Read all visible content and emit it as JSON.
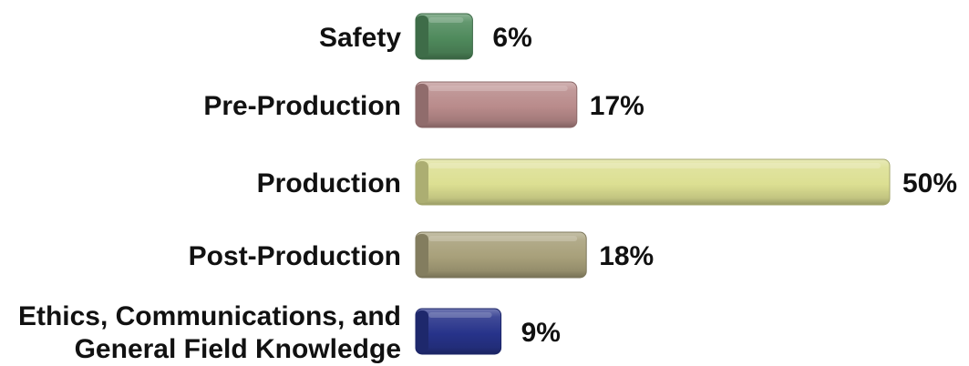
{
  "chart_data": {
    "type": "bar",
    "orientation": "horizontal",
    "categories": [
      [
        "Safety"
      ],
      [
        "Pre-Production"
      ],
      [
        "Production"
      ],
      [
        "Post-Production"
      ],
      [
        "Ethics, Communications, and",
        "General Field Knowledge"
      ]
    ],
    "values": [
      6,
      17,
      50,
      18,
      9
    ],
    "value_labels": [
      "6%",
      "17%",
      "50%",
      "18%",
      "9%"
    ],
    "colors": [
      "#4f8a5c",
      "#b98b8b",
      "#dcdf92",
      "#a8a07a",
      "#27338a"
    ],
    "unit": "%",
    "title": "",
    "xlabel": "",
    "ylabel": "",
    "xlim": [
      0,
      50
    ],
    "grid": false,
    "legend": "none"
  }
}
